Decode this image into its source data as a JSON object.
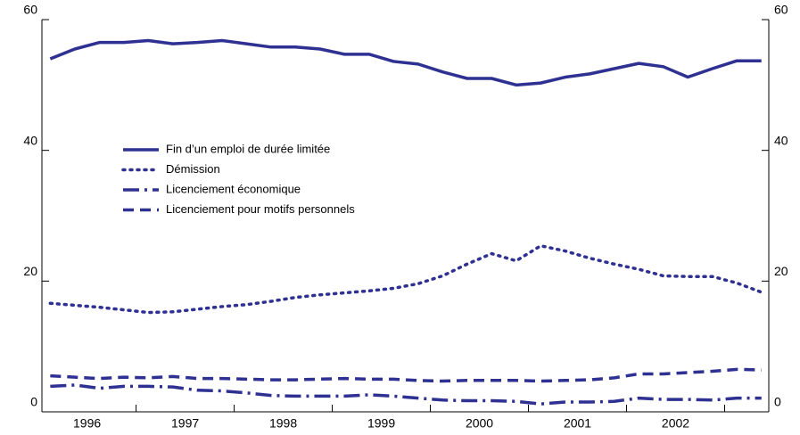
{
  "chart_data": {
    "type": "line",
    "x": [
      1996.125,
      1996.375,
      1996.625,
      1996.875,
      1997.125,
      1997.375,
      1997.625,
      1997.875,
      1998.125,
      1998.375,
      1998.625,
      1998.875,
      1999.125,
      1999.375,
      1999.625,
      1999.875,
      2000.125,
      2000.375,
      2000.625,
      2000.875,
      2001.125,
      2001.375,
      2001.625,
      2001.875,
      2002.125,
      2002.375,
      2002.625,
      2002.875,
      2003.125,
      2003.375
    ],
    "series": [
      {
        "name": "Fin d’un emploi de durée limitée",
        "color": "#2e3192",
        "dash": "solid",
        "values": [
          54,
          55.5,
          56.5,
          56.5,
          56.8,
          56.3,
          56.5,
          56.8,
          56.3,
          55.8,
          55.8,
          55.5,
          54.7,
          54.7,
          53.6,
          53.2,
          52,
          51,
          51,
          50,
          50.3,
          51.2,
          51.7,
          52.5,
          53.3,
          52.8,
          51.2,
          52.5,
          53.7,
          53.7
        ]
      },
      {
        "name": "Démission",
        "color": "#2e3192",
        "dash": "dotted",
        "values": [
          16.6,
          16.3,
          16,
          15.6,
          15.2,
          15.3,
          15.7,
          16.1,
          16.4,
          16.9,
          17.5,
          17.9,
          18.2,
          18.5,
          18.9,
          19.6,
          20.8,
          22.6,
          24.2,
          23.1,
          25.4,
          24.6,
          23.5,
          22.6,
          21.8,
          20.8,
          20.7,
          20.7,
          19.7,
          18.3
        ]
      },
      {
        "name": "Licenciement économique",
        "color": "#2e3192",
        "dash": "dashdot",
        "values": [
          3.9,
          4.1,
          3.6,
          3.9,
          3.9,
          3.8,
          3.3,
          3.2,
          2.9,
          2.5,
          2.4,
          2.4,
          2.4,
          2.6,
          2.4,
          2.1,
          1.8,
          1.7,
          1.7,
          1.6,
          1.2,
          1.5,
          1.5,
          1.6,
          2.1,
          1.9,
          1.9,
          1.8,
          2.1,
          2.1
        ]
      },
      {
        "name": "Licenciement pour motifs personnels",
        "color": "#2e3192",
        "dash": "dashed",
        "values": [
          5.5,
          5.3,
          5.1,
          5.3,
          5.2,
          5.4,
          5.1,
          5.1,
          5,
          4.9,
          4.9,
          5,
          5.1,
          5,
          5,
          4.8,
          4.7,
          4.8,
          4.8,
          4.8,
          4.7,
          4.8,
          4.9,
          5.2,
          5.8,
          5.8,
          6,
          6.2,
          6.5,
          6.4
        ]
      }
    ],
    "xlim": [
      1996.04,
      2003.45
    ],
    "xticks": [
      {
        "value": 1996.5,
        "label": "1996"
      },
      {
        "value": 1997.5,
        "label": "1997"
      },
      {
        "value": 1998.5,
        "label": "1998"
      },
      {
        "value": 1999.5,
        "label": "1999"
      },
      {
        "value": 2000.5,
        "label": "2000"
      },
      {
        "value": 2001.5,
        "label": "2001"
      },
      {
        "value": 2002.5,
        "label": "2002"
      }
    ],
    "x_tick_marks": [
      1997,
      1998,
      1999,
      2000,
      2001,
      2002,
      2003
    ],
    "ylim": [
      0,
      60
    ],
    "yticks": [
      0,
      20,
      40,
      60
    ],
    "y2lim": [
      0,
      60
    ],
    "y2ticks": [
      0,
      20,
      40,
      60
    ],
    "legend": "upper left"
  }
}
